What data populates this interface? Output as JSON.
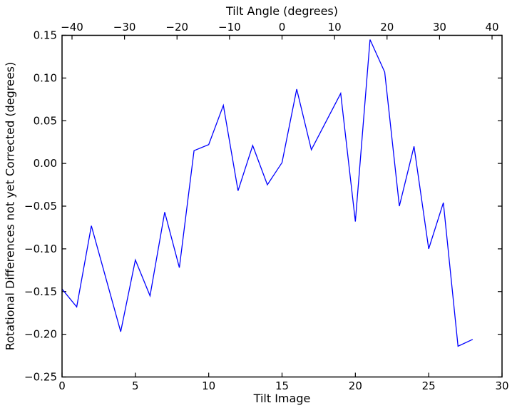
{
  "chart_data": {
    "type": "line",
    "title": "Tilt Angle (degrees)",
    "xlabel": "Tilt Image",
    "ylabel": "Rotational Differences not yet Corrected (degrees)",
    "xlim": [
      0,
      30
    ],
    "ylim": [
      -0.25,
      0.15
    ],
    "grid": false,
    "background": "#ffffff",
    "axis_color": "#000000",
    "series": [
      {
        "name": "rotational-differences",
        "color": "#0000ff",
        "x": [
          0,
          1,
          2,
          3,
          4,
          5,
          6,
          7,
          8,
          9,
          10,
          11,
          12,
          13,
          14,
          15,
          16,
          17,
          18,
          19,
          20,
          21,
          22,
          23,
          24,
          25,
          26,
          27,
          28
        ],
        "y": [
          -0.147,
          -0.168,
          -0.073,
          -0.135,
          -0.197,
          -0.113,
          -0.155,
          -0.057,
          -0.122,
          0.015,
          0.022,
          0.068,
          -0.032,
          0.021,
          -0.025,
          0.001,
          0.087,
          0.016,
          0.049,
          0.082,
          -0.068,
          0.145,
          0.107,
          -0.05,
          0.02,
          -0.1,
          -0.046,
          -0.214,
          -0.206
        ]
      }
    ],
    "x_axis": {
      "ticks": [
        0,
        5,
        10,
        15,
        20,
        25,
        30
      ],
      "tick_labels": [
        "0",
        "5",
        "10",
        "15",
        "20",
        "25",
        "30"
      ]
    },
    "y_axis": {
      "ticks": [
        0.15,
        0.1,
        0.05,
        0.0,
        -0.05,
        -0.1,
        -0.15,
        -0.2,
        -0.25
      ],
      "tick_labels": [
        "0.15",
        "0.10",
        "0.05",
        "0.00",
        "−0.05",
        "−0.10",
        "−0.15",
        "−0.20",
        "−0.25"
      ]
    },
    "top_axis": {
      "label": "Tilt Angle (degrees)",
      "lim": [
        -41.9,
        41.9
      ],
      "ticks": [
        -40,
        -30,
        -20,
        -10,
        0,
        10,
        20,
        30,
        40
      ],
      "tick_labels": [
        "−40",
        "−30",
        "−20",
        "−10",
        "0",
        "10",
        "20",
        "30",
        "40"
      ]
    }
  }
}
